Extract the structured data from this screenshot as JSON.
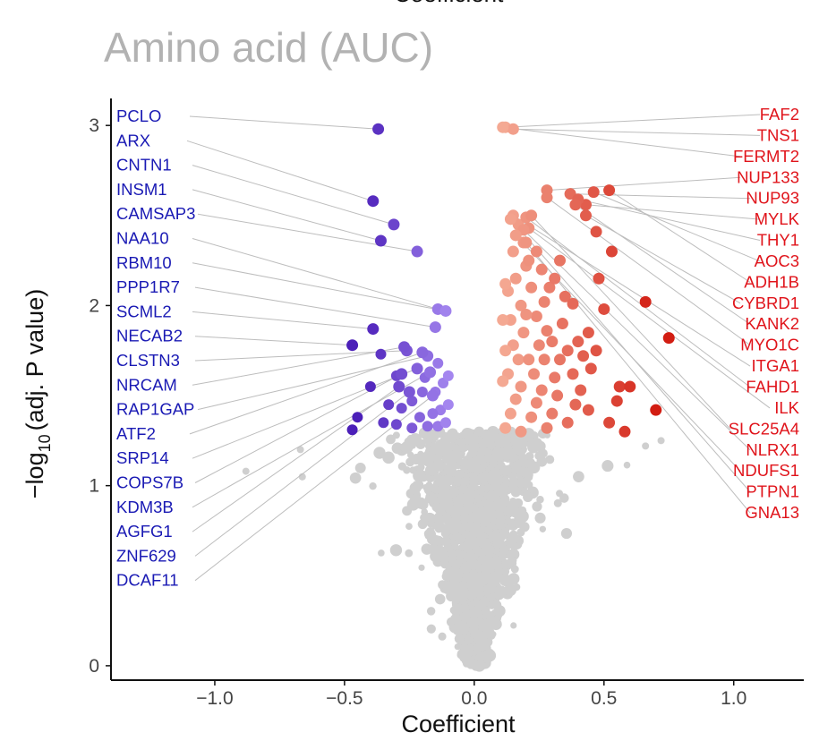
{
  "colors": {
    "down_label": "#1a1ab4",
    "up_label": "#e0141b",
    "background_points": "#cfcfcf",
    "connector": "#bdbdbd"
  },
  "header": {
    "cut_text": "Coefficient"
  },
  "chart_data": {
    "type": "scatter",
    "title": "Amino acid (AUC)",
    "xlabel": "Coefficient",
    "ylabel": "-log10(adj. P value)",
    "ylabel_main": "−log",
    "ylabel_sub": "10",
    "ylabel_rest": "(adj. P value)",
    "xlim": [
      -1.4,
      1.27
    ],
    "ylim": [
      -0.08,
      3.15
    ],
    "x_ticks": [
      -1.0,
      -0.5,
      0.0,
      0.5,
      1.0
    ],
    "x_tick_labels": [
      "−1.0",
      "−0.5",
      "0.0",
      "0.5",
      "1.0"
    ],
    "y_ticks": [
      0,
      1,
      2,
      3
    ],
    "y_tick_labels": [
      "0",
      "1",
      "2",
      "3"
    ],
    "significance_threshold": 1.3,
    "labeled_down": [
      {
        "gene": "PCLO",
        "x": -0.37,
        "y": 2.98
      },
      {
        "gene": "ARX",
        "x": -0.39,
        "y": 2.58
      },
      {
        "gene": "CNTN1",
        "x": -0.31,
        "y": 2.45
      },
      {
        "gene": "INSM1",
        "x": -0.36,
        "y": 2.36
      },
      {
        "gene": "CAMSAP3",
        "x": -0.22,
        "y": 2.3
      },
      {
        "gene": "NAA10",
        "x": -0.14,
        "y": 1.98
      },
      {
        "gene": "RBM10",
        "x": -0.11,
        "y": 1.97
      },
      {
        "gene": "PPP1R7",
        "x": -0.15,
        "y": 1.88
      },
      {
        "gene": "SCML2",
        "x": -0.39,
        "y": 1.87
      },
      {
        "gene": "NECAB2",
        "x": -0.47,
        "y": 1.78
      },
      {
        "gene": "CLSTN3",
        "x": -0.26,
        "y": 1.75
      },
      {
        "gene": "NRCAM",
        "x": -0.27,
        "y": 1.77
      },
      {
        "gene": "RAP1GAP",
        "x": -0.18,
        "y": 1.72
      },
      {
        "gene": "ATF2",
        "x": -0.2,
        "y": 1.74
      },
      {
        "gene": "SRP14",
        "x": -0.22,
        "y": 1.65
      },
      {
        "gene": "COPS7B",
        "x": -0.28,
        "y": 1.62
      },
      {
        "gene": "KDM3B",
        "x": -0.17,
        "y": 1.63
      },
      {
        "gene": "AGFG1",
        "x": -0.29,
        "y": 1.55
      },
      {
        "gene": "ZNF629",
        "x": -0.25,
        "y": 1.52
      },
      {
        "gene": "DCAF11",
        "x": -0.16,
        "y": 1.5
      }
    ],
    "labeled_up": [
      {
        "gene": "FAF2",
        "x": 0.12,
        "y": 2.99
      },
      {
        "gene": "TNS1",
        "x": 0.15,
        "y": 2.98
      },
      {
        "gene": "FERMT2",
        "x": 0.11,
        "y": 2.99
      },
      {
        "gene": "NUP133",
        "x": 0.28,
        "y": 2.64
      },
      {
        "gene": "NUP93",
        "x": 0.37,
        "y": 2.62
      },
      {
        "gene": "MYLK",
        "x": 0.43,
        "y": 2.56
      },
      {
        "gene": "THY1",
        "x": 0.4,
        "y": 2.59
      },
      {
        "gene": "AOC3",
        "x": 0.46,
        "y": 2.63
      },
      {
        "gene": "ADH1B",
        "x": 0.52,
        "y": 2.64
      },
      {
        "gene": "CYBRD1",
        "x": 0.43,
        "y": 2.5
      },
      {
        "gene": "KANK2",
        "x": 0.39,
        "y": 2.56
      },
      {
        "gene": "MYO1C",
        "x": 0.28,
        "y": 2.6
      },
      {
        "gene": "ITGA1",
        "x": 0.15,
        "y": 2.5
      },
      {
        "gene": "FAHD1",
        "x": 0.2,
        "y": 2.49
      },
      {
        "gene": "ILK",
        "x": 0.21,
        "y": 2.43
      },
      {
        "gene": "SLC25A4",
        "x": 0.22,
        "y": 2.5
      },
      {
        "gene": "NLRX1",
        "x": 0.19,
        "y": 2.42
      },
      {
        "gene": "NDUFS1",
        "x": 0.16,
        "y": 2.39
      },
      {
        "gene": "PTPN1",
        "x": 0.14,
        "y": 2.48
      },
      {
        "gene": "GNA13",
        "x": 0.2,
        "y": 2.35
      }
    ],
    "extra_down": [
      [
        -0.24,
        1.32
      ],
      [
        -0.14,
        1.33
      ],
      [
        -0.47,
        1.31
      ],
      [
        -0.45,
        1.38
      ],
      [
        -0.35,
        1.35
      ],
      [
        -0.3,
        1.34
      ],
      [
        -0.28,
        1.43
      ],
      [
        -0.33,
        1.45
      ],
      [
        -0.21,
        1.38
      ],
      [
        -0.18,
        1.33
      ],
      [
        -0.13,
        1.42
      ],
      [
        -0.1,
        1.45
      ],
      [
        -0.15,
        1.52
      ],
      [
        -0.12,
        1.57
      ],
      [
        -0.1,
        1.61
      ],
      [
        -0.19,
        1.6
      ],
      [
        -0.14,
        1.68
      ],
      [
        -0.3,
        1.61
      ],
      [
        -0.24,
        1.47
      ],
      [
        -0.4,
        1.55
      ],
      [
        -0.16,
        1.4
      ],
      [
        -0.11,
        1.35
      ],
      [
        -0.36,
        1.73
      ],
      [
        -0.2,
        1.52
      ]
    ],
    "extra_up": [
      [
        0.12,
        1.32
      ],
      [
        0.14,
        1.4
      ],
      [
        0.16,
        1.48
      ],
      [
        0.18,
        1.55
      ],
      [
        0.13,
        1.62
      ],
      [
        0.17,
        1.7
      ],
      [
        0.15,
        1.78
      ],
      [
        0.19,
        1.85
      ],
      [
        0.14,
        1.92
      ],
      [
        0.18,
        2.0
      ],
      [
        0.13,
        2.08
      ],
      [
        0.16,
        2.15
      ],
      [
        0.2,
        2.22
      ],
      [
        0.15,
        2.3
      ],
      [
        0.22,
        1.38
      ],
      [
        0.24,
        1.46
      ],
      [
        0.26,
        1.53
      ],
      [
        0.23,
        1.62
      ],
      [
        0.27,
        1.7
      ],
      [
        0.25,
        1.78
      ],
      [
        0.28,
        1.86
      ],
      [
        0.24,
        1.94
      ],
      [
        0.27,
        2.02
      ],
      [
        0.22,
        2.1
      ],
      [
        0.3,
        1.4
      ],
      [
        0.32,
        1.5
      ],
      [
        0.31,
        1.6
      ],
      [
        0.33,
        1.7
      ],
      [
        0.3,
        1.8
      ],
      [
        0.34,
        1.9
      ],
      [
        0.36,
        1.75
      ],
      [
        0.38,
        1.62
      ],
      [
        0.4,
        1.8
      ],
      [
        0.42,
        1.72
      ],
      [
        0.44,
        1.85
      ],
      [
        0.35,
        2.05
      ],
      [
        0.29,
        2.1
      ],
      [
        0.21,
        2.25
      ],
      [
        0.19,
        2.35
      ],
      [
        0.17,
        2.45
      ],
      [
        0.12,
        2.12
      ],
      [
        0.11,
        1.92
      ],
      [
        0.12,
        1.75
      ],
      [
        0.11,
        1.58
      ],
      [
        0.2,
        1.95
      ],
      [
        0.26,
        2.2
      ],
      [
        0.33,
        2.25
      ],
      [
        0.48,
        2.15
      ],
      [
        0.5,
        1.98
      ],
      [
        0.56,
        1.55
      ],
      [
        0.58,
        1.3
      ],
      [
        0.55,
        1.47
      ],
      [
        0.47,
        1.75
      ],
      [
        0.38,
        2.01
      ],
      [
        0.41,
        1.53
      ],
      [
        0.36,
        1.35
      ],
      [
        0.44,
        1.42
      ],
      [
        0.28,
        1.32
      ],
      [
        0.18,
        1.3
      ],
      [
        0.7,
        1.42
      ],
      [
        0.75,
        1.82
      ],
      [
        0.66,
        2.02
      ],
      [
        0.6,
        1.55
      ],
      [
        0.53,
        2.3
      ],
      [
        0.47,
        2.41
      ],
      [
        0.31,
        2.15
      ],
      [
        0.24,
        2.3
      ],
      [
        0.21,
        1.7
      ],
      [
        0.39,
        1.45
      ],
      [
        0.45,
        1.65
      ],
      [
        0.52,
        1.35
      ]
    ]
  }
}
